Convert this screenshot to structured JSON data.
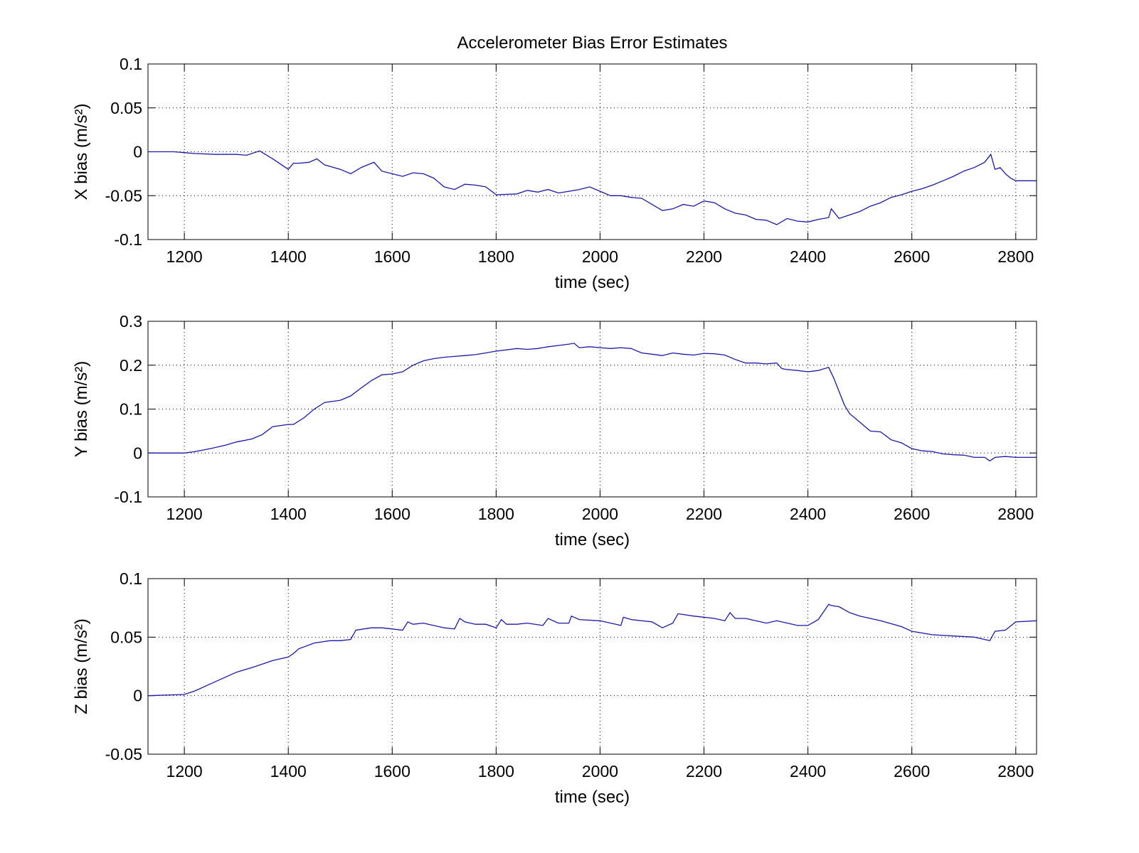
{
  "chart_data": [
    {
      "type": "line",
      "title": "Accelerometer Bias Error Estimates",
      "xlabel": "time (sec)",
      "ylabel": "X bias (m/s²)",
      "xlim": [
        1130,
        2840
      ],
      "ylim": [
        -0.1,
        0.1
      ],
      "xticks": [
        1200,
        1400,
        1600,
        1800,
        2000,
        2200,
        2400,
        2600,
        2800
      ],
      "yticks": [
        0.1,
        0.05,
        0,
        -0.05,
        -0.1
      ],
      "yticklabels": [
        "0.1",
        "0.05",
        "0",
        "-0.05",
        "-0.1"
      ],
      "grid": true,
      "line_color": "#1a1aaa",
      "series": [
        {
          "x": [
            1130,
            1180,
            1220,
            1260,
            1300,
            1320,
            1345,
            1370,
            1400,
            1410,
            1420,
            1440,
            1455,
            1470,
            1500,
            1520,
            1540,
            1565,
            1580,
            1600,
            1620,
            1640,
            1660,
            1680,
            1700,
            1720,
            1740,
            1760,
            1780,
            1800,
            1840,
            1860,
            1880,
            1900,
            1920,
            1940,
            1960,
            1980,
            2000,
            2020,
            2040,
            2060,
            2080,
            2100,
            2120,
            2140,
            2160,
            2180,
            2200,
            2220,
            2240,
            2260,
            2280,
            2300,
            2320,
            2340,
            2360,
            2380,
            2400,
            2420,
            2440,
            2445,
            2460,
            2480,
            2500,
            2520,
            2540,
            2560,
            2580,
            2600,
            2620,
            2640,
            2660,
            2680,
            2700,
            2720,
            2740,
            2752,
            2760,
            2770,
            2780,
            2790,
            2800,
            2840
          ],
          "y": [
            0.0,
            0.0,
            -0.002,
            -0.003,
            -0.003,
            -0.004,
            0.001,
            -0.008,
            -0.02,
            -0.013,
            -0.013,
            -0.012,
            -0.008,
            -0.015,
            -0.02,
            -0.025,
            -0.018,
            -0.012,
            -0.022,
            -0.025,
            -0.028,
            -0.024,
            -0.025,
            -0.03,
            -0.04,
            -0.043,
            -0.037,
            -0.038,
            -0.04,
            -0.049,
            -0.048,
            -0.044,
            -0.046,
            -0.043,
            -0.047,
            -0.045,
            -0.043,
            -0.04,
            -0.045,
            -0.05,
            -0.05,
            -0.052,
            -0.053,
            -0.06,
            -0.067,
            -0.065,
            -0.06,
            -0.062,
            -0.056,
            -0.058,
            -0.065,
            -0.07,
            -0.072,
            -0.077,
            -0.078,
            -0.083,
            -0.076,
            -0.079,
            -0.08,
            -0.077,
            -0.075,
            -0.065,
            -0.076,
            -0.072,
            -0.068,
            -0.062,
            -0.058,
            -0.052,
            -0.049,
            -0.045,
            -0.042,
            -0.038,
            -0.033,
            -0.028,
            -0.022,
            -0.018,
            -0.012,
            -0.003,
            -0.02,
            -0.018,
            -0.025,
            -0.03,
            -0.033,
            -0.033
          ]
        }
      ]
    },
    {
      "type": "line",
      "xlabel": "time (sec)",
      "ylabel": "Y bias (m/s²)",
      "xlim": [
        1130,
        2840
      ],
      "ylim": [
        -0.1,
        0.3
      ],
      "xticks": [
        1200,
        1400,
        1600,
        1800,
        2000,
        2200,
        2400,
        2600,
        2800
      ],
      "yticks": [
        0.3,
        0.2,
        0.1,
        0,
        -0.1
      ],
      "yticklabels": [
        "0.3",
        "0.2",
        "0.1",
        "0",
        "-0.1"
      ],
      "grid": true,
      "line_color": "#1a1aaa",
      "series": [
        {
          "x": [
            1130,
            1200,
            1220,
            1250,
            1280,
            1300,
            1330,
            1350,
            1370,
            1400,
            1410,
            1430,
            1450,
            1470,
            1500,
            1520,
            1540,
            1560,
            1580,
            1600,
            1620,
            1640,
            1660,
            1680,
            1700,
            1720,
            1740,
            1760,
            1780,
            1800,
            1840,
            1860,
            1880,
            1900,
            1920,
            1940,
            1950,
            1960,
            1980,
            2000,
            2020,
            2040,
            2060,
            2080,
            2100,
            2120,
            2140,
            2160,
            2180,
            2200,
            2220,
            2240,
            2260,
            2280,
            2300,
            2320,
            2340,
            2350,
            2360,
            2380,
            2400,
            2420,
            2440,
            2450,
            2460,
            2470,
            2480,
            2500,
            2520,
            2540,
            2560,
            2580,
            2600,
            2620,
            2640,
            2660,
            2680,
            2700,
            2720,
            2740,
            2750,
            2760,
            2780,
            2800,
            2840
          ],
          "y": [
            0.0,
            0.0,
            0.003,
            0.01,
            0.018,
            0.025,
            0.032,
            0.042,
            0.06,
            0.065,
            0.065,
            0.08,
            0.1,
            0.115,
            0.12,
            0.13,
            0.148,
            0.165,
            0.178,
            0.18,
            0.185,
            0.2,
            0.21,
            0.215,
            0.218,
            0.22,
            0.222,
            0.224,
            0.228,
            0.232,
            0.238,
            0.236,
            0.238,
            0.242,
            0.245,
            0.248,
            0.25,
            0.24,
            0.242,
            0.24,
            0.238,
            0.24,
            0.238,
            0.228,
            0.225,
            0.222,
            0.228,
            0.225,
            0.223,
            0.227,
            0.226,
            0.223,
            0.213,
            0.205,
            0.205,
            0.203,
            0.205,
            0.192,
            0.19,
            0.188,
            0.185,
            0.188,
            0.195,
            0.17,
            0.14,
            0.11,
            0.09,
            0.07,
            0.05,
            0.048,
            0.03,
            0.023,
            0.01,
            0.005,
            0.003,
            -0.002,
            -0.004,
            -0.005,
            -0.01,
            -0.01,
            -0.018,
            -0.01,
            -0.008,
            -0.01,
            -0.01
          ]
        }
      ]
    },
    {
      "type": "line",
      "xlabel": "time (sec)",
      "ylabel": "Z bias (m/s²)",
      "xlim": [
        1130,
        2840
      ],
      "ylim": [
        -0.05,
        0.1
      ],
      "xticks": [
        1200,
        1400,
        1600,
        1800,
        2000,
        2200,
        2400,
        2600,
        2800
      ],
      "yticks": [
        0.1,
        0.05,
        0,
        -0.05
      ],
      "yticklabels": [
        "0.1",
        "0.05",
        "0",
        "-0.05"
      ],
      "grid": true,
      "line_color": "#1a1aaa",
      "series": [
        {
          "x": [
            1130,
            1200,
            1220,
            1250,
            1280,
            1300,
            1330,
            1350,
            1370,
            1400,
            1410,
            1420,
            1450,
            1480,
            1500,
            1520,
            1530,
            1560,
            1580,
            1600,
            1620,
            1630,
            1640,
            1660,
            1700,
            1720,
            1730,
            1740,
            1760,
            1780,
            1800,
            1810,
            1820,
            1840,
            1860,
            1890,
            1900,
            1920,
            1940,
            1945,
            1960,
            2000,
            2040,
            2045,
            2060,
            2100,
            2120,
            2140,
            2150,
            2180,
            2200,
            2220,
            2240,
            2250,
            2260,
            2280,
            2320,
            2340,
            2380,
            2400,
            2420,
            2440,
            2445,
            2460,
            2480,
            2500,
            2540,
            2580,
            2600,
            2640,
            2680,
            2720,
            2750,
            2760,
            2780,
            2800,
            2840
          ],
          "y": [
            0.0,
            0.001,
            0.004,
            0.01,
            0.016,
            0.02,
            0.024,
            0.027,
            0.03,
            0.033,
            0.036,
            0.04,
            0.045,
            0.047,
            0.047,
            0.048,
            0.056,
            0.058,
            0.058,
            0.057,
            0.056,
            0.063,
            0.061,
            0.062,
            0.058,
            0.057,
            0.066,
            0.063,
            0.061,
            0.061,
            0.058,
            0.065,
            0.061,
            0.061,
            0.062,
            0.06,
            0.066,
            0.062,
            0.062,
            0.068,
            0.065,
            0.064,
            0.06,
            0.067,
            0.065,
            0.063,
            0.058,
            0.062,
            0.07,
            0.068,
            0.067,
            0.066,
            0.064,
            0.071,
            0.066,
            0.066,
            0.062,
            0.064,
            0.06,
            0.06,
            0.065,
            0.078,
            0.077,
            0.076,
            0.071,
            0.068,
            0.064,
            0.059,
            0.055,
            0.052,
            0.051,
            0.05,
            0.047,
            0.055,
            0.056,
            0.063,
            0.064
          ]
        }
      ]
    }
  ]
}
